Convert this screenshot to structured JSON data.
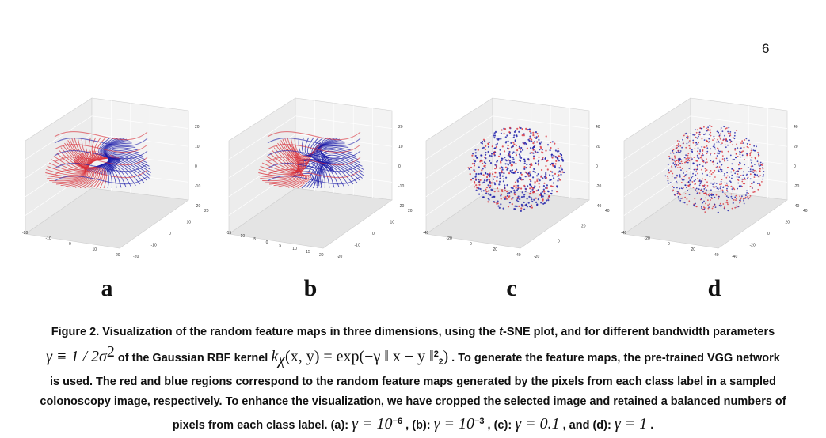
{
  "page_number": "6",
  "panels": [
    {
      "letter": "a",
      "z_ticks": [
        "20",
        "10",
        "0",
        "-10",
        "-20"
      ],
      "x_ticks": [
        "-20",
        "-10",
        "0",
        "10",
        "20"
      ],
      "y_ticks": [
        "20",
        "10",
        "0",
        "-10",
        "-20"
      ],
      "style": "shell"
    },
    {
      "letter": "b",
      "z_ticks": [
        "20",
        "10",
        "0",
        "-10",
        "-20"
      ],
      "x_ticks": [
        "-15",
        "-10",
        "-5",
        "0",
        "5",
        "10",
        "15",
        "20"
      ],
      "y_ticks": [
        "20",
        "10",
        "0",
        "-10",
        "-20"
      ],
      "style": "folds"
    },
    {
      "letter": "c",
      "z_ticks": [
        "40",
        "20",
        "0",
        "-20",
        "-40"
      ],
      "x_ticks": [
        "-40",
        "-20",
        "0",
        "20",
        "40"
      ],
      "y_ticks": [
        "40",
        "20",
        "0",
        "-20"
      ],
      "style": "dense"
    },
    {
      "letter": "d",
      "z_ticks": [
        "40",
        "20",
        "0",
        "-20",
        "-40"
      ],
      "x_ticks": [
        "-40",
        "-20",
        "0",
        "20",
        "40"
      ],
      "y_ticks": [
        "40",
        "20",
        "0",
        "-20",
        "-40"
      ],
      "style": "scatter"
    }
  ],
  "colors": {
    "red_class": "#d9303a",
    "blue_class": "#1a1aa8"
  },
  "caption": {
    "l1_a": "Figure 2. Visualization of the random feature maps in three dimensions, using the ",
    "l1_em": "t",
    "l1_b": "-SNE plot, and for different bandwidth parameters",
    "l2_gamma": "γ ≡ 1 / 2σ",
    "l2_sup": "2",
    "l2_a": " of the Gaussian RBF kernel ",
    "l2_kernel": "k",
    "l2_kernel_sub": "χ",
    "l2_kernel_args": "(x, y) = exp(−γ ‖ x − y ‖",
    "l2_kernel_sup": "2",
    "l2_kernel_sub2": "2",
    "l2_kernel_close": ")",
    "l2_b": " . To generate the feature maps, the pre-trained VGG network",
    "l3": "is used. The red and blue regions correspond to the random feature maps generated by the pixels from each class label in a sampled",
    "l4": "colonoscopy image, respectively. To enhance the visualization, we have cropped the selected image and retained a balanced numbers of",
    "l5_a": "pixels from each class label. (a): ",
    "l5_g1": "γ = 10",
    "l5_g1_sup": "−6",
    "l5_b": " , (b): ",
    "l5_g2": "γ = 10",
    "l5_g2_sup": "−3",
    "l5_c": " , (c): ",
    "l5_g3": "γ = 0.1",
    "l5_d": " , and (d): ",
    "l5_g4": "γ = 1",
    "l5_e": " ."
  }
}
